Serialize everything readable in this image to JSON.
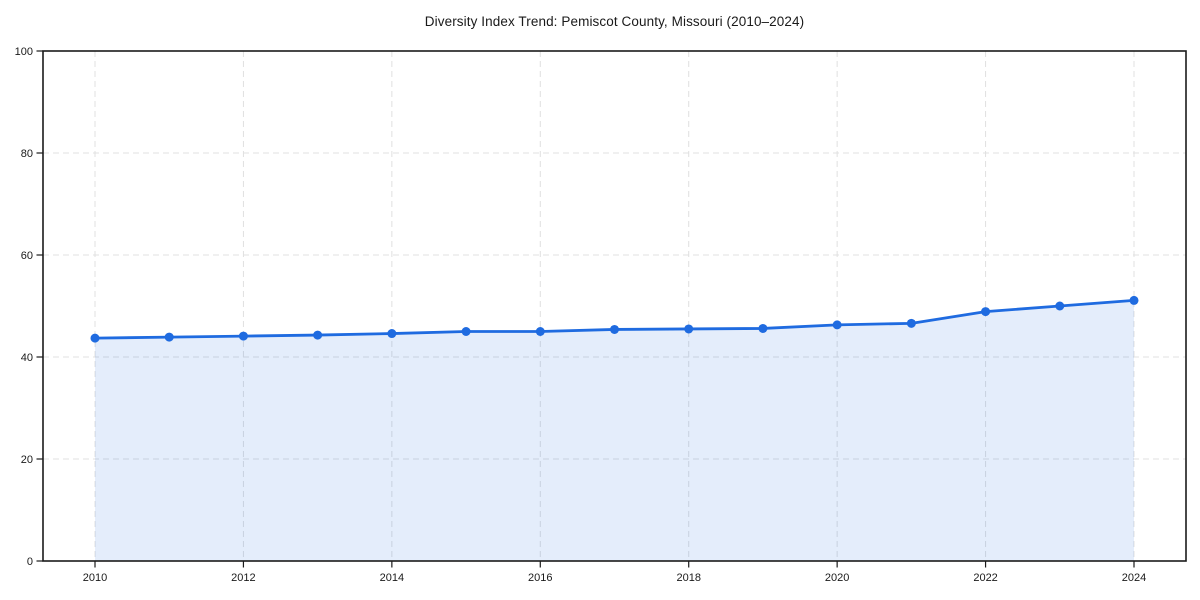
{
  "chart_data": {
    "type": "line",
    "title": "Diversity Index Trend: Pemiscot County, Missouri (2010–2024)",
    "xlabel": "",
    "ylabel": "",
    "x": [
      2010,
      2011,
      2012,
      2013,
      2014,
      2015,
      2016,
      2017,
      2018,
      2019,
      2020,
      2021,
      2022,
      2023,
      2024
    ],
    "series": [
      {
        "name": "Diversity Index",
        "values": [
          43.7,
          43.9,
          44.1,
          44.3,
          44.6,
          45.0,
          45.0,
          45.4,
          45.5,
          45.6,
          46.3,
          46.6,
          48.9,
          50.0,
          51.1
        ]
      }
    ],
    "ylim": [
      0,
      100
    ],
    "yticks": [
      0,
      20,
      40,
      60,
      80,
      100
    ],
    "xticks": [
      2010,
      2012,
      2014,
      2016,
      2018,
      2020,
      2022,
      2024
    ],
    "grid": true,
    "legend": false,
    "colors": {
      "line": "#1f6be0",
      "marker": "#1f6be0",
      "area_fill": "rgba(31,107,224,0.12)",
      "grid": "#e0e0e0",
      "axis": "#1a1a1a",
      "text": "#1a1a1a",
      "background": "#ffffff"
    }
  }
}
